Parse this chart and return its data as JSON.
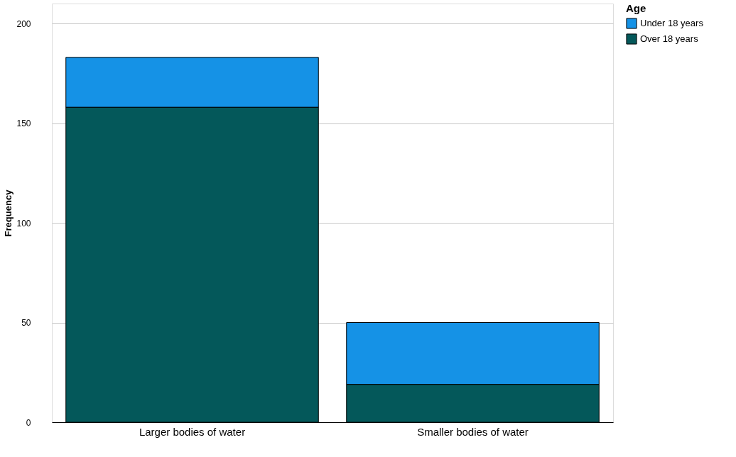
{
  "chart_data": {
    "type": "bar",
    "stacked": true,
    "ylabel": "Frequency",
    "legend_title": "Age",
    "legend": "top right",
    "grid": "y",
    "categories": [
      "Larger bodies of water",
      "Smaller bodies of water"
    ],
    "ylim": [
      0,
      210
    ],
    "yticks": [
      0,
      50,
      100,
      150,
      200
    ],
    "series": [
      {
        "name": "Over 18 years",
        "color": "#04585a",
        "values": [
          158,
          19
        ]
      },
      {
        "name": "Under 18 years",
        "color": "#1592e6",
        "values": [
          25,
          31
        ]
      }
    ]
  }
}
